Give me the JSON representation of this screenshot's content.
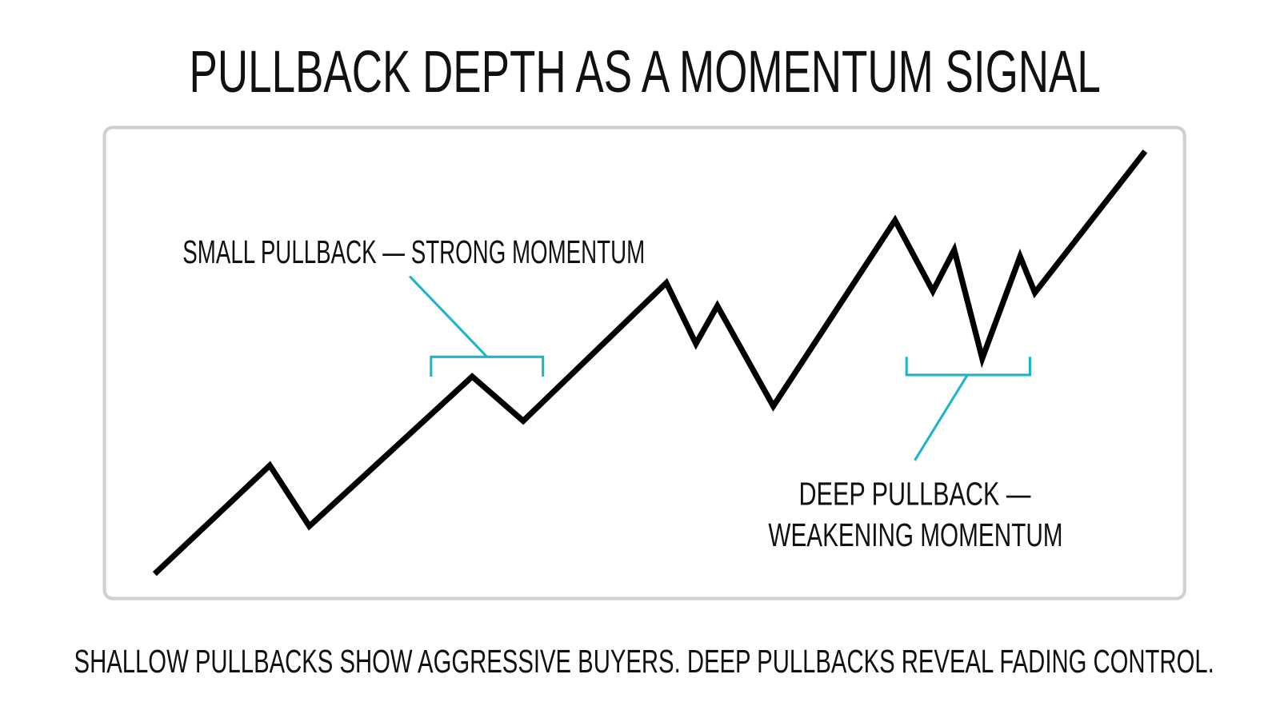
{
  "header": {
    "title": "PULLBACK DEPTH AS A MOMENTUM SIGNAL"
  },
  "annotations": {
    "small": "SMALL PULLBACK — STRONG MOMENTUM",
    "deep": [
      "DEEP PULLBACK —",
      "WEAKENING MOMENTUM"
    ]
  },
  "caption": "SHALLOW PULLBACKS SHOW AGGRESSIVE BUYERS. DEEP PULLBACKS REVEAL FADING CONTROL."
}
